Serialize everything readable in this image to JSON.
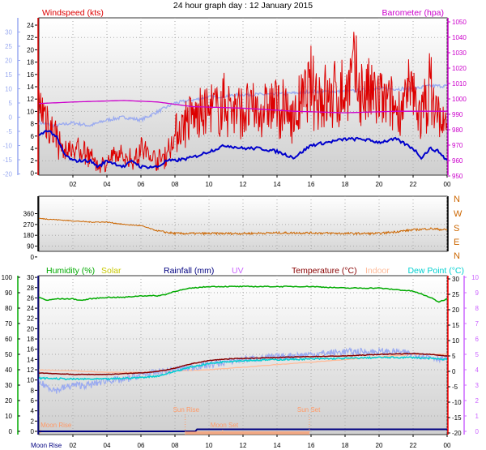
{
  "header": {
    "title": "24 hour graph day : 12 January 2015"
  },
  "colors": {
    "windspeed": "#dd0000",
    "barometer": "#cc00cc",
    "wind_avg": "#0000cc",
    "direction": "#cc6600",
    "humidity": "#00aa00",
    "solar": "#c8c800",
    "rainfall": "#000080",
    "uv": "#cc66ff",
    "temperature": "#880000",
    "indoor": "#ffbb99",
    "dewpoint": "#00d0d0",
    "temp_axis": "#ff0000",
    "left_axis": "#9aaaf0",
    "sun": "#ff9966",
    "moon": "#ff9966"
  },
  "chart_data": [
    {
      "type": "line",
      "title": "24 hour graph day : 12 January 2015",
      "x_ticks": [
        "02",
        "04",
        "06",
        "08",
        "10",
        "12",
        "14",
        "16",
        "18",
        "20",
        "22",
        "00"
      ],
      "grid": true,
      "axes": {
        "windspeed": {
          "label": "Windspeed (kts)",
          "ticks": [
            0,
            2,
            4,
            6,
            8,
            10,
            12,
            14,
            16,
            18,
            20,
            22,
            24
          ]
        },
        "left_outer": {
          "ticks": [
            -20,
            -15,
            -10,
            -5,
            0,
            5,
            10,
            15,
            20,
            25,
            30
          ]
        },
        "barometer": {
          "label": "Barometer (hpa)",
          "ticks": [
            950,
            960,
            970,
            980,
            990,
            1000,
            1010,
            1020,
            1030,
            1040,
            1050
          ]
        }
      },
      "series": [
        {
          "name": "Windspeed (kts)",
          "x_hours": [
            0,
            0.5,
            1,
            1.5,
            2,
            3,
            3.5,
            4,
            5,
            5.5,
            6,
            7,
            7.5,
            8,
            8.5,
            9,
            10,
            11,
            12,
            13,
            14,
            15,
            16,
            17,
            18,
            18.5,
            19,
            20,
            21,
            22,
            22.5,
            23,
            23.5,
            24
          ],
          "values": [
            11,
            9,
            6,
            3,
            4,
            3,
            1,
            2,
            3,
            2,
            4,
            2,
            3,
            6,
            8,
            9,
            10,
            11,
            10,
            10,
            11,
            9,
            14,
            12,
            13,
            16,
            13,
            12,
            10,
            13,
            9,
            14,
            9,
            7
          ]
        },
        {
          "name": "Average wind (kts)",
          "x_hours": [
            0,
            0.5,
            1,
            1.5,
            2,
            3,
            3.5,
            4,
            5,
            5.5,
            6,
            7,
            7.5,
            8,
            9,
            10,
            11,
            12,
            13,
            14,
            15,
            16,
            17,
            18,
            19,
            20,
            21,
            22,
            22.5,
            23,
            23.5,
            24
          ],
          "values": [
            6,
            7,
            6,
            3,
            2,
            2,
            1,
            2,
            1,
            2,
            1,
            1,
            2,
            2,
            2.5,
            3.5,
            4.5,
            4,
            4,
            3.5,
            2.5,
            4.5,
            5,
            5.5,
            5.5,
            5,
            5.5,
            4,
            2.5,
            4,
            3.5,
            2
          ]
        },
        {
          "name": "Barometer (hpa)",
          "x_hours": [
            0,
            2,
            5,
            7,
            9,
            12,
            15,
            18,
            21,
            24
          ],
          "values": [
            997,
            998,
            999,
            998,
            995,
            994,
            992,
            991,
            992,
            992
          ]
        },
        {
          "name": "Indoor",
          "x_hours": [
            0,
            1,
            2,
            3,
            4,
            5,
            6,
            8,
            9,
            10,
            12,
            14,
            16,
            18,
            20,
            22,
            23,
            24
          ],
          "values": [
            -2,
            -3,
            -2,
            -3,
            -1,
            0,
            -1,
            5,
            6,
            7,
            8,
            8,
            9,
            9,
            10,
            10,
            11,
            11
          ]
        }
      ]
    },
    {
      "type": "line",
      "axes": {
        "direction_degrees": {
          "ticks": [
            0,
            90,
            180,
            270,
            360
          ]
        },
        "direction_compass": {
          "ticks": [
            "N",
            "W",
            "S",
            "E",
            "N"
          ]
        }
      },
      "series": [
        {
          "name": "Wind direction (°)",
          "x_hours": [
            0,
            1,
            2,
            3,
            4,
            5,
            6,
            7,
            8,
            10,
            12,
            14,
            16,
            18,
            20,
            21,
            22,
            23,
            24
          ],
          "values": [
            320,
            310,
            300,
            290,
            290,
            270,
            260,
            215,
            195,
            195,
            195,
            200,
            200,
            195,
            195,
            210,
            225,
            235,
            225
          ]
        }
      ]
    },
    {
      "type": "line",
      "legend": [
        "Humidity (%)",
        "Solar",
        "Rainfall (mm)",
        "UV",
        "Temperature (°C)",
        "Indoor",
        "Dew Point (°C)"
      ],
      "axes": {
        "humidity": {
          "ticks": [
            0,
            10,
            20,
            30,
            40,
            50,
            60,
            70,
            80,
            90,
            100
          ]
        },
        "rainfall": {
          "ticks": [
            0,
            2,
            4,
            6,
            8,
            10,
            12,
            14,
            16,
            18,
            20,
            22,
            24,
            26,
            28,
            30
          ]
        },
        "temperature": {
          "ticks": [
            -20,
            -15,
            -10,
            -5,
            0,
            5,
            10,
            15,
            20,
            25,
            30
          ]
        },
        "uv": {
          "ticks": [
            0,
            1,
            2,
            3,
            4,
            5,
            6,
            7,
            8,
            9,
            10
          ]
        }
      },
      "series": [
        {
          "name": "Humidity (%)",
          "x_hours": [
            0,
            0.5,
            1,
            2,
            2.5,
            3,
            4,
            5,
            6,
            7,
            7.5,
            8,
            9,
            10,
            12,
            16,
            18,
            20,
            21,
            22,
            23,
            23.5,
            24
          ],
          "values": [
            87,
            85,
            86,
            86,
            85,
            86,
            87,
            87,
            88,
            88,
            89,
            91,
            93,
            94,
            94,
            94,
            93,
            93,
            92,
            91,
            87,
            84,
            86
          ]
        },
        {
          "name": "Temperature (°C)",
          "x_hours": [
            0,
            2,
            4,
            6,
            7,
            8,
            9,
            10,
            11,
            12,
            14,
            16,
            18,
            20,
            22,
            23,
            24
          ],
          "values": [
            -0.5,
            -1,
            -1,
            -0.5,
            0,
            1,
            2.5,
            3.5,
            4,
            4.2,
            4.5,
            4.8,
            5,
            5.5,
            5.8,
            5.5,
            5
          ]
        },
        {
          "name": "Dew Point (°C)",
          "x_hours": [
            0,
            2,
            4,
            6,
            7,
            8,
            9,
            10,
            11,
            12,
            14,
            16,
            18,
            20,
            22,
            23,
            24
          ],
          "values": [
            -2.2,
            -2.5,
            -2.5,
            -2,
            -1.5,
            0,
            1.5,
            2.5,
            3.2,
            3.5,
            3.8,
            4,
            4.2,
            4.5,
            4.5,
            4.2,
            3.8
          ]
        },
        {
          "name": "Indoor",
          "x_hours": [
            0,
            2,
            4,
            6,
            8,
            10,
            12,
            14,
            16,
            18,
            20,
            22,
            24
          ],
          "values": [
            12,
            11.8,
            11.5,
            11.5,
            11.8,
            12,
            12.5,
            13,
            13.5,
            14,
            14.5,
            15,
            15
          ]
        },
        {
          "name": "Dew Point (light)",
          "x_hours": [
            0,
            1,
            2,
            3,
            4,
            5,
            6,
            7,
            8,
            9,
            10,
            12,
            14,
            16,
            18,
            20,
            21,
            22,
            23,
            24
          ],
          "values": [
            9.5,
            8,
            9,
            9,
            10,
            10,
            11,
            11.5,
            12,
            12.5,
            13,
            14,
            14.5,
            15,
            15.5,
            15.5,
            15.5,
            15,
            14.5,
            14
          ]
        },
        {
          "name": "Rainfall (mm)",
          "x_hours": [
            0,
            9.2,
            9.3,
            24
          ],
          "values": [
            0,
            0,
            0.4,
            0.4
          ]
        }
      ],
      "annotations": [
        {
          "label": "Moon Rise",
          "x_hour": 0.1
        },
        {
          "label": "Sun Rise",
          "x_hour": 8.6
        },
        {
          "label": "Moon Set",
          "x_hour": 10.8
        },
        {
          "label": "Sun Set",
          "x_hour": 15.9
        }
      ],
      "bottom_labels": {
        "moon_rise": "Moon Rise",
        "sun_set": "Sun Set"
      }
    }
  ],
  "panel1": {
    "windspeed_label": "Windspeed (kts)",
    "barometer_label": "Barometer (hpa)"
  },
  "panel2": {
    "compass": [
      "N",
      "W",
      "S",
      "E",
      "N"
    ]
  },
  "panel3": {
    "legend": {
      "humidity": "Humidity (%)",
      "solar": "Solar",
      "rainfall": "Rainfall (mm)",
      "uv": "UV",
      "temperature": "Temperature (°C)",
      "indoor": "Indoor",
      "dewpoint": "Dew Point (°C)"
    },
    "events": {
      "moon_rise": "Moon Rise",
      "sun_rise": "Sun Rise",
      "moon_set": "Moon Set",
      "sun_set": "Sun Set"
    }
  }
}
